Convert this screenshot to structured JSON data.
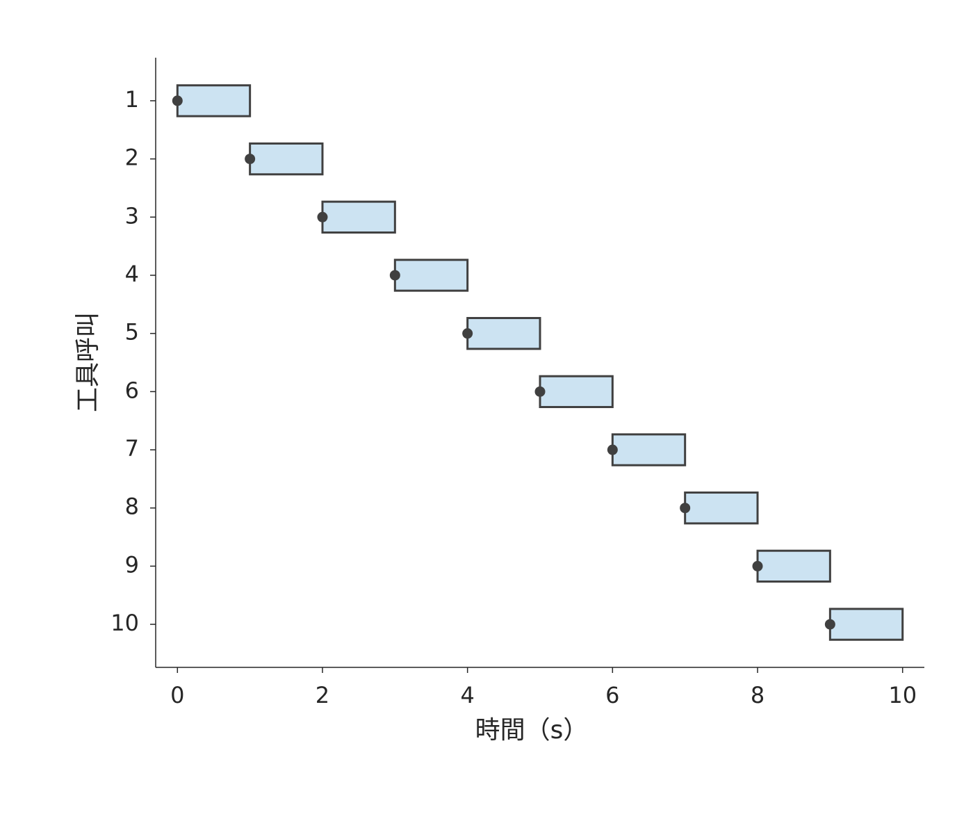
{
  "chart_data": {
    "type": "gantt",
    "x_label": "時間（s）",
    "y_label": "工具呼叫",
    "categories": [
      "1",
      "2",
      "3",
      "4",
      "5",
      "6",
      "7",
      "8",
      "9",
      "10"
    ],
    "start": [
      0,
      1,
      2,
      3,
      4,
      5,
      6,
      7,
      8,
      9
    ],
    "duration": [
      1,
      1,
      1,
      1,
      1,
      1,
      1,
      1,
      1,
      1
    ],
    "color": "#cce3f2",
    "edge_color": "#404040",
    "marker_color": "#404040",
    "xlim": [
      -0.3,
      10.3
    ],
    "xticks": [
      0,
      2,
      4,
      6,
      8,
      10
    ]
  }
}
